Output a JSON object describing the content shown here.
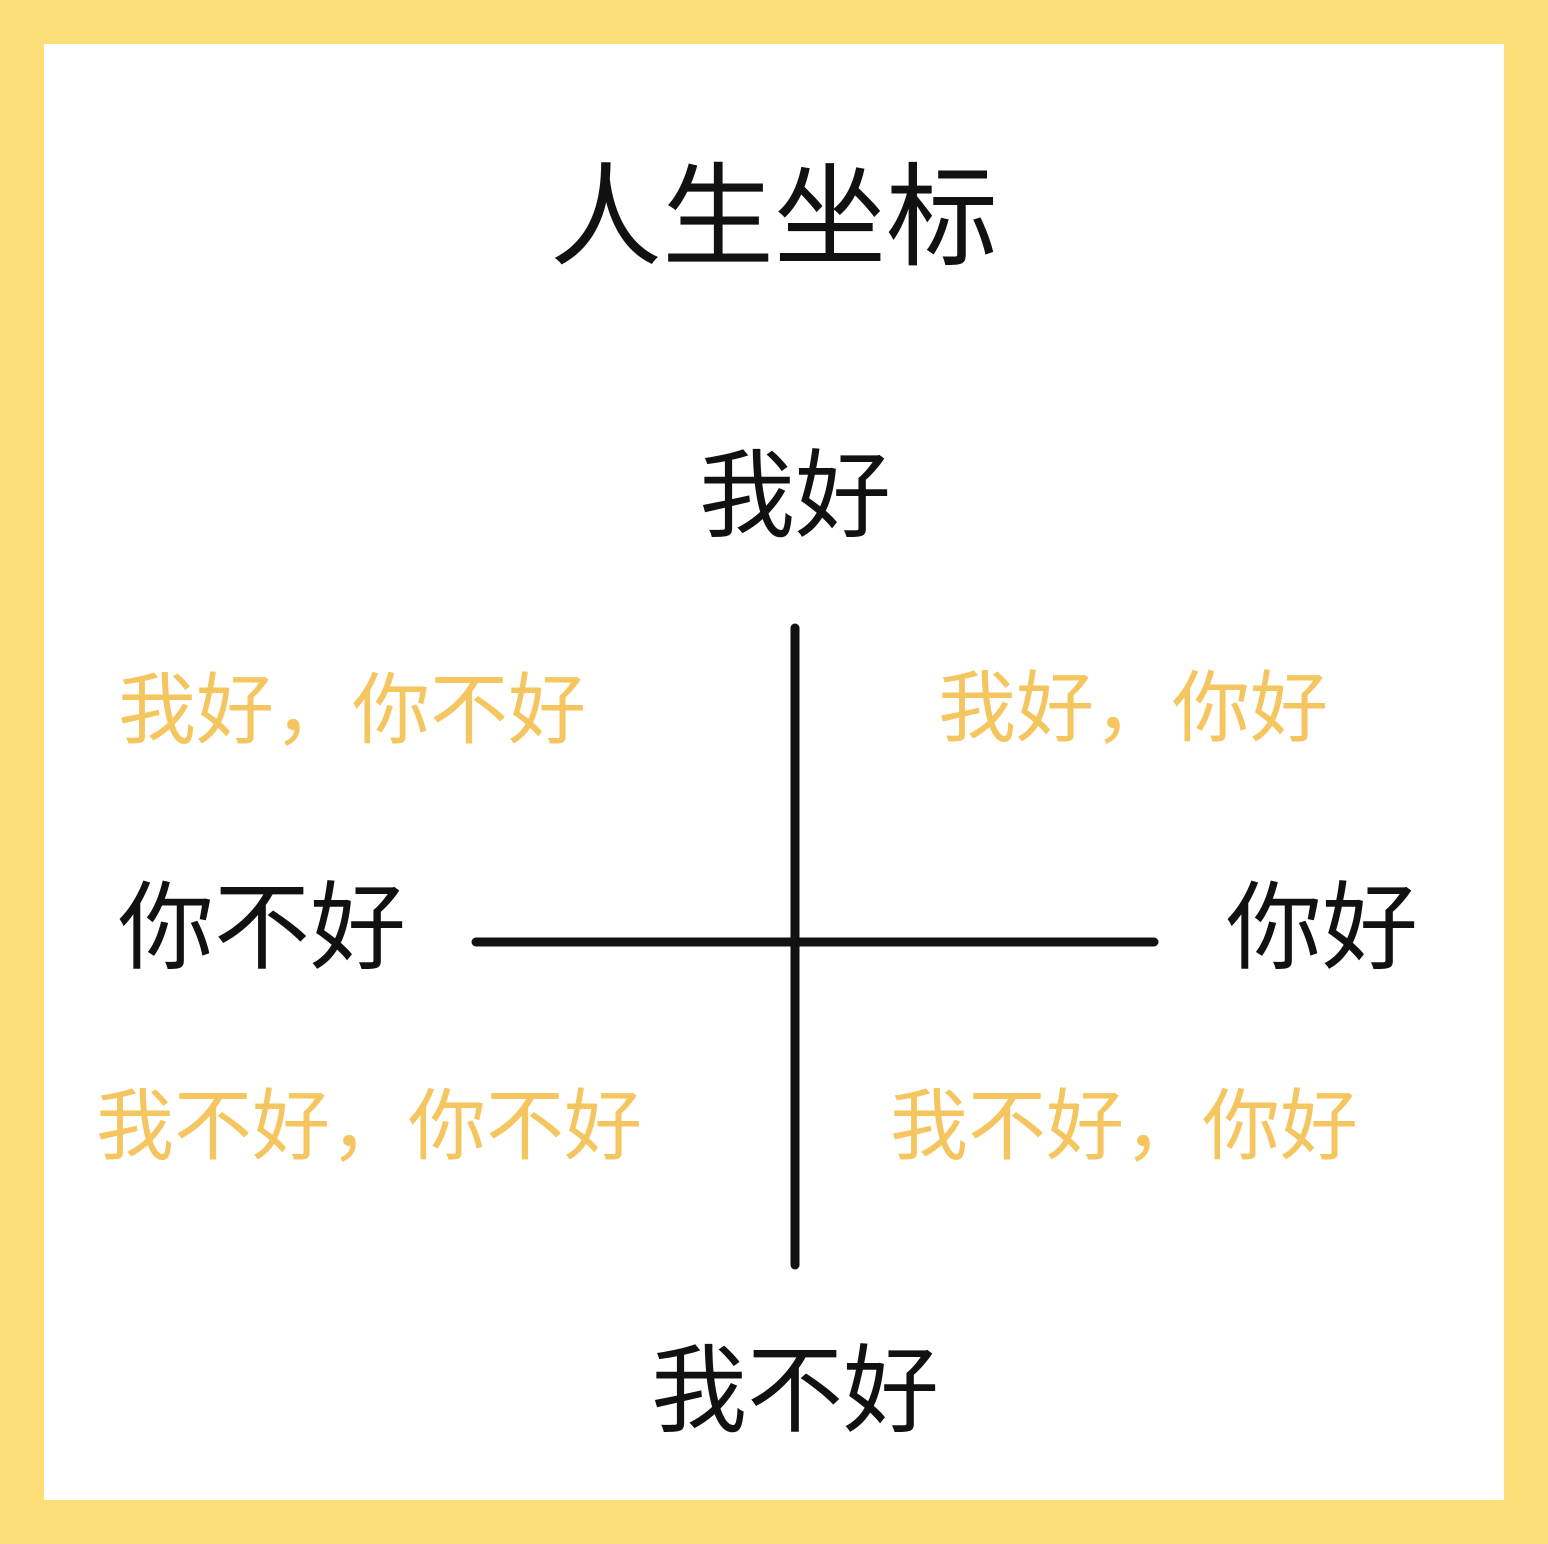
{
  "title": "人生坐标",
  "axes": {
    "top": "我好",
    "bottom": "我不好",
    "left": "你不好",
    "right": "你好"
  },
  "quadrants": {
    "top_left": "我好，你不好",
    "top_right": "我好，你好",
    "bottom_left": "我不好，你不好",
    "bottom_right": "我不好，你好"
  },
  "colors": {
    "border": "#FBDE77",
    "background": "#FFFFFF",
    "axis_text": "#111111",
    "quadrant_text": "#F5C560",
    "axis_line": "#111111"
  }
}
